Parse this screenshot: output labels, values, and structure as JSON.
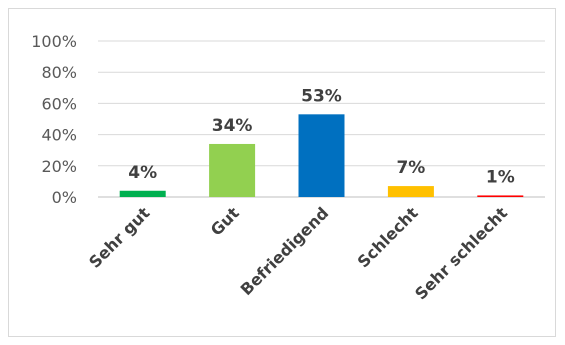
{
  "chart_data": {
    "type": "bar",
    "categories": [
      "Sehr gut",
      "Gut",
      "Befriedigend",
      "Schlecht",
      "Sehr schlecht"
    ],
    "values": [
      4,
      34,
      53,
      7,
      1
    ],
    "data_labels": [
      "4%",
      "34%",
      "53%",
      "7%",
      "1%"
    ],
    "colors": [
      "#00b050",
      "#92d050",
      "#0070c0",
      "#ffc000",
      "#ff0000"
    ],
    "ylim": [
      0,
      100
    ],
    "y_ticks": [
      0,
      20,
      40,
      60,
      80,
      100
    ],
    "y_tick_labels": [
      "0%",
      "20%",
      "40%",
      "60%",
      "80%",
      "100%"
    ],
    "grid": true,
    "legend": "none"
  }
}
